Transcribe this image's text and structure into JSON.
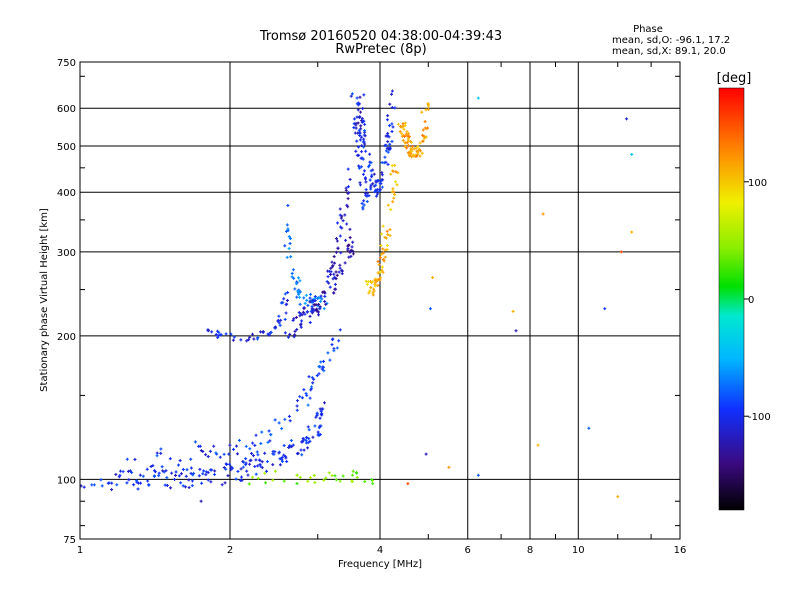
{
  "chart_data": {
    "type": "scatter",
    "title": "Tromsø 20160520 04:38:00-04:39:43",
    "subtitle": "RwPretec (8p)",
    "xlabel": "Frequency [MHz]",
    "ylabel": "Stationary phase Virtual Height [km]",
    "x_scale": "log",
    "y_scale": "log",
    "xlim": [
      1,
      16
    ],
    "ylim": [
      75,
      750
    ],
    "x_ticks": [
      1,
      2,
      4,
      6,
      8,
      10,
      16
    ],
    "x_tick_labels": [
      "1",
      "2",
      "4",
      "6",
      "8",
      "10",
      "16"
    ],
    "y_ticks": [
      75,
      100,
      200,
      300,
      400,
      500,
      600,
      750
    ],
    "y_tick_labels": [
      "75",
      "100",
      "200",
      "300",
      "400",
      "500",
      "600",
      "750"
    ],
    "grid": true,
    "phase_box": {
      "title": "Phase",
      "line1": "mean, sd,O: -96.1, 17.2",
      "line2": "mean, sd,X:  89.1, 20.0"
    },
    "colorbar": {
      "label": "[deg]",
      "range": [
        -180,
        180
      ],
      "ticks": [
        100,
        0,
        -100
      ],
      "tick_labels": [
        "100",
        "0",
        "-100"
      ]
    },
    "series": [
      {
        "trace_ribbons": [
          {
            "xs": [
              1.0,
              1.2,
              1.5,
              1.8,
              2.0,
              2.2,
              2.5,
              2.8,
              3.0,
              3.05
            ],
            "ys": [
              98,
              99,
              100,
              101,
              103,
              106,
              112,
              118,
              128,
              140
            ],
            "spread": 0.05,
            "phase": -100,
            "n": 170
          },
          {
            "xs": [
              1.25,
              1.45,
              1.7,
              1.9,
              2.1,
              2.3
            ],
            "ys": [
              104,
              108,
              112,
              110,
              114,
              118
            ],
            "spread": 0.07,
            "phase": -95,
            "n": 60
          },
          {
            "xs": [
              2.3,
              2.5,
              2.7,
              2.9,
              3.0,
              3.1,
              3.2,
              3.3
            ],
            "ys": [
              120,
              130,
              140,
              155,
              165,
              175,
              190,
              200
            ],
            "spread": 0.05,
            "phase": -90,
            "n": 50
          },
          {
            "xs": [
              1.75,
              1.9,
              2.0,
              2.15,
              2.3,
              2.45,
              2.55,
              2.6
            ],
            "ys": [
              210,
              202,
              198,
              198,
              200,
              205,
              220,
              250
            ],
            "spread": 0.015,
            "phase": -100,
            "n": 50
          },
          {
            "xs": [
              2.58,
              2.62,
              2.7,
              2.8,
              2.9,
              3.0,
              3.1
            ],
            "ys": [
              390,
              300,
              260,
              240,
              235,
              232,
              230
            ],
            "spread": 0.04,
            "phase": -70,
            "n": 60
          },
          {
            "xs": [
              2.6,
              2.75,
              2.9,
              3.05,
              3.2,
              3.35,
              3.5,
              3.6,
              3.7
            ],
            "ys": [
              200,
              215,
              225,
              240,
              280,
              340,
              420,
              530,
              650
            ],
            "spread": 0.05,
            "phase": -115,
            "n": 100
          },
          {
            "xs": [
              2.9,
              3.1,
              3.3,
              3.45,
              3.55
            ],
            "ys": [
              220,
              240,
              270,
              300,
              330
            ],
            "spread": 0.04,
            "phase": -125,
            "n": 50
          },
          {
            "xs": [
              3.55,
              3.6,
              3.65,
              3.7,
              3.75
            ],
            "ys": [
              650,
              550,
              480,
              420,
              380
            ],
            "spread": 0.05,
            "phase": -100,
            "n": 45
          },
          {
            "xs": [
              3.65,
              3.75,
              3.85,
              3.95,
              4.05,
              4.15,
              4.25
            ],
            "ys": [
              560,
              480,
              420,
              400,
              420,
              500,
              650
            ],
            "spread": 0.04,
            "phase": -100,
            "n": 90
          },
          {
            "xs": [
              3.8,
              3.9,
              4.0,
              4.1,
              4.2,
              4.3
            ],
            "ys": [
              250,
              255,
              275,
              320,
              380,
              450
            ],
            "spread": 0.04,
            "phase": 110,
            "n": 70
          },
          {
            "xs": [
              4.4,
              4.5,
              4.6,
              4.75,
              4.9,
              4.95
            ],
            "ys": [
              560,
              520,
              490,
              480,
              520,
              640
            ],
            "spread": 0.025,
            "phase": 115,
            "n": 80
          },
          {
            "xs": [
              2.2,
              2.5,
              2.8,
              3.1,
              3.4,
              3.7,
              3.9
            ],
            "ys": [
              100,
              101,
              100,
              101,
              102,
              100,
              99
            ],
            "spread": 0.03,
            "phase": 40,
            "n": 35
          }
        ]
      },
      {
        "scatter_points": [
          {
            "x": 6.3,
            "y": 630,
            "phase": -40
          },
          {
            "x": 12.5,
            "y": 570,
            "phase": -110
          },
          {
            "x": 12.8,
            "y": 480,
            "phase": -40
          },
          {
            "x": 8.5,
            "y": 360,
            "phase": 120
          },
          {
            "x": 12.8,
            "y": 330,
            "phase": 110
          },
          {
            "x": 12.2,
            "y": 300,
            "phase": 150
          },
          {
            "x": 7.4,
            "y": 225,
            "phase": 110
          },
          {
            "x": 11.3,
            "y": 228,
            "phase": -90
          },
          {
            "x": 5.05,
            "y": 228,
            "phase": -80
          },
          {
            "x": 7.5,
            "y": 205,
            "phase": -120
          },
          {
            "x": 5.1,
            "y": 265,
            "phase": 110
          },
          {
            "x": 10.5,
            "y": 128,
            "phase": -80
          },
          {
            "x": 8.3,
            "y": 118,
            "phase": 110
          },
          {
            "x": 4.95,
            "y": 113,
            "phase": -120
          },
          {
            "x": 5.5,
            "y": 106,
            "phase": 120
          },
          {
            "x": 6.3,
            "y": 102,
            "phase": -80
          },
          {
            "x": 12.0,
            "y": 92,
            "phase": 110
          },
          {
            "x": 4.55,
            "y": 98,
            "phase": 150
          },
          {
            "x": 1.75,
            "y": 90,
            "phase": -120
          }
        ]
      }
    ]
  }
}
